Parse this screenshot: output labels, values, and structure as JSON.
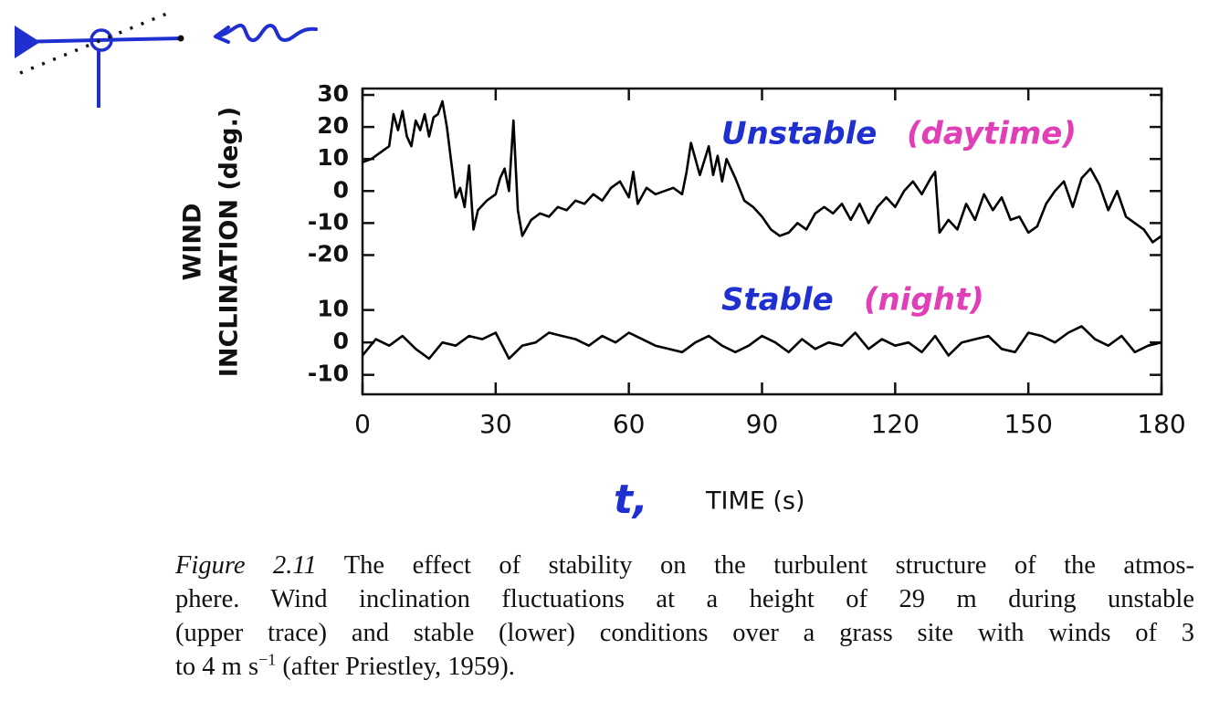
{
  "chart_data": [
    {
      "type": "line",
      "ylabel": [
        "WIND",
        "INCLINATION (deg.)"
      ],
      "xlim": [
        0,
        180
      ],
      "ylim": [
        -25,
        32
      ],
      "yticks": [
        30,
        20,
        10,
        0,
        -10,
        -20
      ],
      "x": [
        0,
        2,
        4,
        6,
        7,
        8,
        9,
        10,
        11,
        12,
        13,
        14,
        15,
        16,
        17,
        18,
        19,
        20,
        21,
        22,
        23,
        24,
        25,
        26,
        28,
        30,
        31,
        32,
        33,
        34,
        35,
        36,
        38,
        40,
        42,
        44,
        46,
        48,
        50,
        52,
        54,
        56,
        58,
        60,
        61,
        62,
        64,
        66,
        68,
        70,
        72,
        73,
        74,
        76,
        78,
        79,
        80,
        81,
        82,
        84,
        86,
        88,
        90,
        92,
        94,
        96,
        98,
        100,
        102,
        104,
        106,
        108,
        110,
        112,
        114,
        116,
        118,
        120,
        122,
        124,
        126,
        128,
        129,
        130,
        132,
        134,
        136,
        138,
        140,
        142,
        144,
        146,
        148,
        150,
        152,
        154,
        156,
        158,
        160,
        162,
        164,
        166,
        168,
        170,
        172,
        174,
        176,
        178,
        180
      ],
      "series": [
        {
          "name": "Unstable",
          "color": "#000000",
          "label_color": "#1f2fd0",
          "values": [
            9,
            10,
            12,
            14,
            24,
            19,
            25,
            17,
            14,
            22,
            19,
            24,
            17,
            23,
            24,
            28,
            20,
            9,
            -2,
            1,
            -5,
            8,
            -12,
            -6,
            -3,
            -1,
            4,
            7,
            0,
            22,
            -6,
            -14,
            -9,
            -7,
            -8,
            -5,
            -6,
            -3,
            -4,
            -1,
            -3,
            1,
            3,
            -2,
            6,
            -4,
            1,
            -1,
            0,
            1,
            -1,
            6,
            15,
            5,
            14,
            5,
            11,
            3,
            10,
            4,
            -3,
            -5,
            -8,
            -12,
            -14,
            -13,
            -10,
            -12,
            -7,
            -5,
            -7,
            -4,
            -9,
            -4,
            -10,
            -5,
            -2,
            -5,
            0,
            3,
            -1,
            4,
            6,
            -13,
            -9,
            -12,
            -4,
            -9,
            -1,
            -6,
            -2,
            -9,
            -8,
            -13,
            -11,
            -4,
            0,
            3,
            -5,
            4,
            7,
            2,
            -6,
            0,
            -8,
            -10,
            -12,
            -16,
            -14
          ]
        }
      ],
      "annotation": {
        "text": "(daytime)",
        "color": "#e03fb8"
      }
    },
    {
      "type": "line",
      "xlabel": "TIME (s)",
      "xlabel_note": {
        "text": "t,",
        "color": "#1f2fd0"
      },
      "xlim": [
        0,
        180
      ],
      "xticks": [
        0,
        30,
        60,
        90,
        120,
        150,
        180
      ],
      "ylim": [
        -16,
        22
      ],
      "yticks": [
        10,
        0,
        -10
      ],
      "x": [
        0,
        3,
        6,
        9,
        12,
        15,
        18,
        21,
        24,
        27,
        30,
        33,
        36,
        39,
        42,
        45,
        48,
        51,
        54,
        57,
        60,
        63,
        66,
        69,
        72,
        75,
        78,
        81,
        84,
        87,
        90,
        93,
        96,
        99,
        102,
        105,
        108,
        111,
        114,
        117,
        120,
        123,
        126,
        129,
        132,
        135,
        138,
        141,
        144,
        147,
        150,
        153,
        156,
        159,
        162,
        165,
        168,
        171,
        174,
        177,
        180
      ],
      "series": [
        {
          "name": "Stable",
          "color": "#000000",
          "label_color": "#1f2fd0",
          "values": [
            -4,
            1,
            -1,
            2,
            -2,
            -5,
            0,
            -1,
            2,
            1,
            3,
            -5,
            -1,
            0,
            3,
            2,
            1,
            -1,
            2,
            0,
            3,
            1,
            -1,
            -2,
            -3,
            0,
            2,
            -1,
            -3,
            -1,
            2,
            0,
            -3,
            1,
            -2,
            0,
            -1,
            3,
            -2,
            1,
            -1,
            0,
            -3,
            2,
            -4,
            0,
            1,
            2,
            -2,
            -3,
            3,
            2,
            0,
            3,
            5,
            1,
            -1,
            2,
            -3,
            -1,
            0
          ]
        }
      ],
      "annotation": {
        "text": "(night)",
        "color": "#e03fb8"
      }
    }
  ],
  "caption": {
    "label": "Figure 2.11",
    "lines": [
      "The effect of stability on the turbulent structure of the atmos-",
      "phere. Wind inclination fluctuations at a height of 29 m during unstable",
      "(upper trace) and stable (lower) conditions over a grass site with winds of 3"
    ],
    "last": {
      "text": "to 4 m s",
      "sup": "−1",
      "rest": "(after Priestley, 1959)."
    }
  }
}
